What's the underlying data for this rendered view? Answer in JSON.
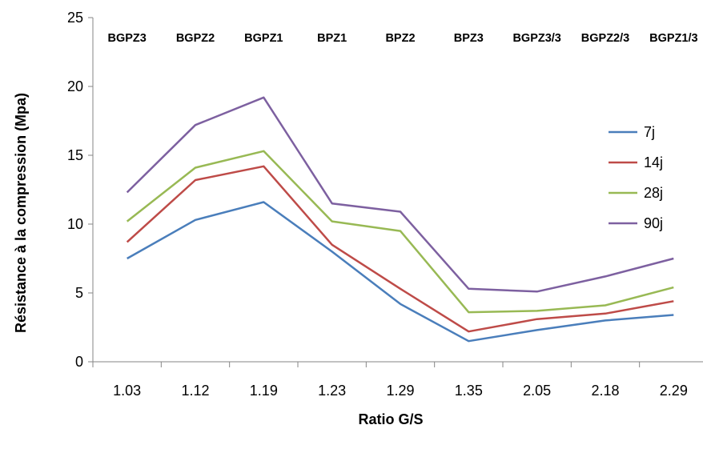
{
  "chart_data": {
    "type": "line",
    "x": [
      "1.03",
      "1.12",
      "1.19",
      "1.23",
      "1.29",
      "1.35",
      "2.05",
      "2.18",
      "2.29"
    ],
    "categories": [
      "BGPZ3",
      "BGPZ2",
      "BGPZ1",
      "BPZ1",
      "BPZ2",
      "BPZ3",
      "BGPZ3/3",
      "BGPZ2/3",
      "BGPZ1/3"
    ],
    "series": [
      {
        "name": "7j",
        "color": "#4a7ebb",
        "values": [
          7.5,
          10.3,
          11.6,
          8.0,
          4.2,
          1.5,
          2.3,
          3.0,
          3.4
        ]
      },
      {
        "name": "14j",
        "color": "#be4b48",
        "values": [
          8.7,
          13.2,
          14.2,
          8.5,
          5.3,
          2.2,
          3.1,
          3.5,
          4.4
        ]
      },
      {
        "name": "28j",
        "color": "#98b954",
        "values": [
          10.2,
          14.1,
          15.3,
          10.2,
          9.5,
          3.6,
          3.7,
          4.1,
          5.4
        ]
      },
      {
        "name": "90j",
        "color": "#7d60a0",
        "values": [
          12.3,
          17.2,
          19.2,
          11.5,
          10.9,
          5.3,
          5.1,
          6.2,
          7.5
        ]
      }
    ],
    "xlabel": "Ratio G/S",
    "ylabel": "Résistance à la compression (Mpa)",
    "ylim": [
      0,
      25
    ],
    "yticks": [
      "0",
      "5",
      "10",
      "15",
      "20",
      "25"
    ],
    "grid": false,
    "legend_position": "right"
  }
}
